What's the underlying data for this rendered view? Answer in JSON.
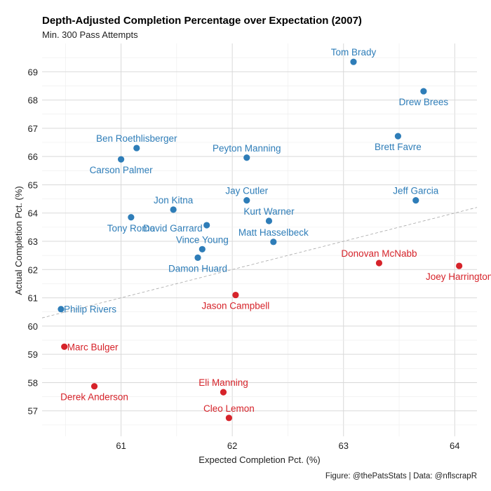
{
  "chart_data": {
    "type": "scatter",
    "title": "Depth-Adjusted Completion Percentage over Expectation (2007)",
    "subtitle": "Min. 300 Pass Attempts",
    "xlabel": "Expected Completion Pct. (%)",
    "ylabel": "Actual Completion Pct. (%)",
    "caption": "Figure: @thePatsStats | Data: @nflscrapR",
    "xlim": [
      60.29,
      64.2
    ],
    "ylim": [
      56.1,
      70
    ],
    "x_ticks": [
      "61",
      "62",
      "63",
      "64"
    ],
    "y_ticks": [
      "57",
      "58",
      "59",
      "60",
      "61",
      "62",
      "63",
      "64",
      "65",
      "66",
      "67",
      "68",
      "69"
    ],
    "grid": true,
    "legend": "none",
    "reference_line": "y = x",
    "colors": {
      "above": "#2e7db8",
      "below": "#d6232a"
    },
    "points": [
      {
        "name": "Tom Brady",
        "x": 63.09,
        "y": 69.35,
        "group": "above",
        "label_pos": "above"
      },
      {
        "name": "Drew Brees",
        "x": 63.72,
        "y": 68.31,
        "group": "above",
        "label_pos": "below"
      },
      {
        "name": "Brett Favre",
        "x": 63.49,
        "y": 66.72,
        "group": "above",
        "label_pos": "below"
      },
      {
        "name": "Ben Roethlisberger",
        "x": 61.14,
        "y": 66.3,
        "group": "above",
        "label_pos": "above"
      },
      {
        "name": "Carson Palmer",
        "x": 61.0,
        "y": 65.9,
        "group": "above",
        "label_pos": "below"
      },
      {
        "name": "Peyton Manning",
        "x": 62.13,
        "y": 65.96,
        "group": "above",
        "label_pos": "above"
      },
      {
        "name": "Jay Cutler",
        "x": 62.13,
        "y": 64.45,
        "group": "above",
        "label_pos": "above"
      },
      {
        "name": "Jeff Garcia",
        "x": 63.65,
        "y": 64.45,
        "group": "above",
        "label_pos": "above"
      },
      {
        "name": "Jon Kitna",
        "x": 61.47,
        "y": 64.12,
        "group": "above",
        "label_pos": "above"
      },
      {
        "name": "Kurt Warner",
        "x": 62.33,
        "y": 63.72,
        "group": "above",
        "label_pos": "above"
      },
      {
        "name": "Tony Romo",
        "x": 61.09,
        "y": 63.85,
        "group": "above",
        "label_pos": "below"
      },
      {
        "name": "David Garrard",
        "x": 61.77,
        "y": 63.57,
        "group": "above",
        "label_pos": "left"
      },
      {
        "name": "Matt Hasselbeck",
        "x": 62.37,
        "y": 62.98,
        "group": "above",
        "label_pos": "above"
      },
      {
        "name": "Vince Young",
        "x": 61.73,
        "y": 62.72,
        "group": "above",
        "label_pos": "above"
      },
      {
        "name": "Damon Huard",
        "x": 61.69,
        "y": 62.42,
        "group": "above",
        "label_pos": "below"
      },
      {
        "name": "Philip Rivers",
        "x": 60.46,
        "y": 60.6,
        "group": "above",
        "label_pos": "right"
      },
      {
        "name": "Donovan McNabb",
        "x": 63.32,
        "y": 62.23,
        "group": "below",
        "label_pos": "above"
      },
      {
        "name": "Joey Harrington",
        "x": 64.04,
        "y": 62.13,
        "group": "below",
        "label_pos": "below"
      },
      {
        "name": "Jason Campbell",
        "x": 62.03,
        "y": 61.1,
        "group": "below",
        "label_pos": "below"
      },
      {
        "name": "Marc Bulger",
        "x": 60.49,
        "y": 59.27,
        "group": "below",
        "label_pos": "right"
      },
      {
        "name": "Derek Anderson",
        "x": 60.76,
        "y": 57.87,
        "group": "below",
        "label_pos": "below"
      },
      {
        "name": "Eli Manning",
        "x": 61.92,
        "y": 57.66,
        "group": "below",
        "label_pos": "above"
      },
      {
        "name": "Cleo Lemon",
        "x": 61.97,
        "y": 56.75,
        "group": "below",
        "label_pos": "above"
      }
    ]
  }
}
